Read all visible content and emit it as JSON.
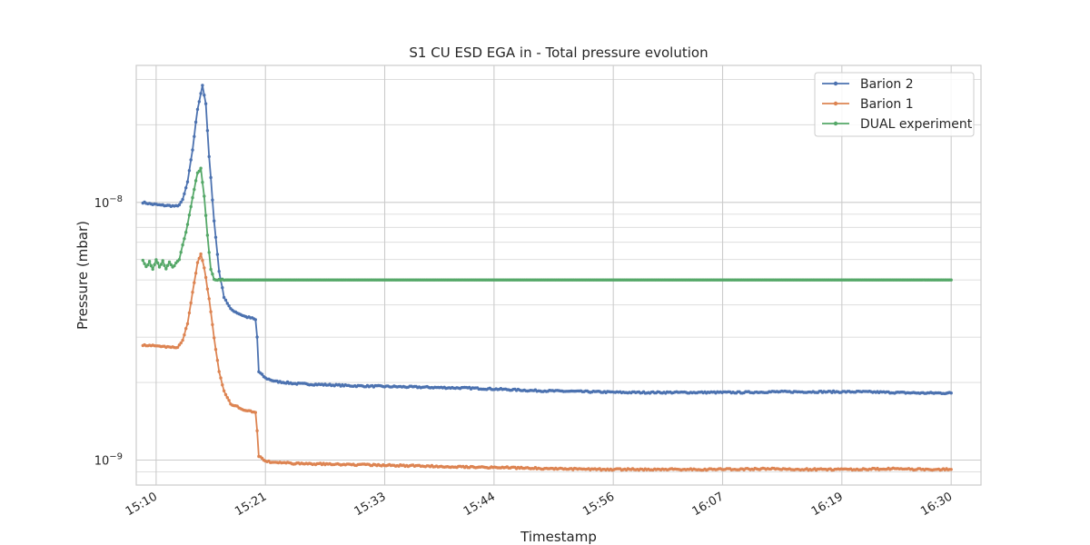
{
  "chart_data": {
    "type": "line",
    "title": "S1 CU ESD EGA in - Total pressure evolution",
    "xlabel": "Timestamp",
    "ylabel": "Pressure (mbar)",
    "x_scale": "time",
    "y_scale": "log",
    "xlim": [
      "15:08",
      "16:33"
    ],
    "ylim": [
      8e-10,
      3.4e-08
    ],
    "x_ticks": [
      "15:10",
      "15:21",
      "15:33",
      "15:44",
      "15:56",
      "16:07",
      "16:19",
      "16:30"
    ],
    "y_ticks": [
      {
        "value": 1e-09,
        "label": "10",
        "exp": "−9"
      },
      {
        "value": 1e-08,
        "label": "10",
        "exp": "−8"
      }
    ],
    "grid": true,
    "legend_position": "top-right",
    "series": [
      {
        "name": "Barion 2",
        "color": "#4c72b0",
        "points": [
          [
            "15:08:40",
            1e-08
          ],
          [
            "15:09:30",
            9.85e-09
          ],
          [
            "15:10:30",
            9.75e-09
          ],
          [
            "15:11:30",
            9.7e-09
          ],
          [
            "15:12:10",
            9.65e-09
          ],
          [
            "15:12:40",
            1.02e-08
          ],
          [
            "15:13:10",
            1.2e-08
          ],
          [
            "15:13:40",
            1.6e-08
          ],
          [
            "15:14:10",
            2.3e-08
          ],
          [
            "15:14:40",
            2.85e-08
          ],
          [
            "15:15:00",
            2.4e-08
          ],
          [
            "15:15:20",
            1.5e-08
          ],
          [
            "15:15:50",
            8.5e-09
          ],
          [
            "15:16:20",
            5.4e-09
          ],
          [
            "15:16:50",
            4.3e-09
          ],
          [
            "15:17:30",
            3.85e-09
          ],
          [
            "15:18:20",
            3.7e-09
          ],
          [
            "15:19:00",
            3.6e-09
          ],
          [
            "15:19:40",
            3.55e-09
          ],
          [
            "15:20:00",
            3.5e-09
          ],
          [
            "15:20:10",
            3e-09
          ],
          [
            "15:20:20",
            2.2e-09
          ],
          [
            "15:21:00",
            2.08e-09
          ],
          [
            "15:22:00",
            2.02e-09
          ],
          [
            "15:24:00",
            1.98e-09
          ],
          [
            "15:27:00",
            1.96e-09
          ],
          [
            "15:30:00",
            1.94e-09
          ],
          [
            "15:33:00",
            1.93e-09
          ],
          [
            "15:36:00",
            1.92e-09
          ],
          [
            "15:39:00",
            1.91e-09
          ],
          [
            "15:42:00",
            1.9e-09
          ],
          [
            "15:45:00",
            1.88e-09
          ],
          [
            "15:48:00",
            1.86e-09
          ],
          [
            "15:51:00",
            1.85e-09
          ],
          [
            "15:54:00",
            1.84e-09
          ],
          [
            "15:57:00",
            1.83e-09
          ],
          [
            "16:00:00",
            1.83e-09
          ],
          [
            "16:03:00",
            1.83e-09
          ],
          [
            "16:06:00",
            1.83e-09
          ],
          [
            "16:09:00",
            1.83e-09
          ],
          [
            "16:12:00",
            1.84e-09
          ],
          [
            "16:15:00",
            1.84e-09
          ],
          [
            "16:18:00",
            1.84e-09
          ],
          [
            "16:21:00",
            1.84e-09
          ],
          [
            "16:24:00",
            1.83e-09
          ],
          [
            "16:27:00",
            1.82e-09
          ],
          [
            "16:30:00",
            1.82e-09
          ]
        ]
      },
      {
        "name": "Barion 1",
        "color": "#dd8452",
        "points": [
          [
            "15:08:40",
            2.8e-09
          ],
          [
            "15:09:30",
            2.78e-09
          ],
          [
            "15:10:30",
            2.76e-09
          ],
          [
            "15:11:30",
            2.75e-09
          ],
          [
            "15:12:10",
            2.73e-09
          ],
          [
            "15:12:40",
            2.9e-09
          ],
          [
            "15:13:10",
            3.4e-09
          ],
          [
            "15:13:40",
            4.5e-09
          ],
          [
            "15:14:10",
            5.8e-09
          ],
          [
            "15:14:30",
            6.3e-09
          ],
          [
            "15:14:50",
            5.6e-09
          ],
          [
            "15:15:20",
            4.2e-09
          ],
          [
            "15:15:50",
            3e-09
          ],
          [
            "15:16:20",
            2.2e-09
          ],
          [
            "15:16:50",
            1.85e-09
          ],
          [
            "15:17:30",
            1.65e-09
          ],
          [
            "15:18:20",
            1.6e-09
          ],
          [
            "15:19:00",
            1.56e-09
          ],
          [
            "15:19:40",
            1.54e-09
          ],
          [
            "15:20:00",
            1.52e-09
          ],
          [
            "15:20:10",
            1.3e-09
          ],
          [
            "15:20:20",
            1.04e-09
          ],
          [
            "15:21:00",
            9.9e-10
          ],
          [
            "15:22:00",
            9.8e-10
          ],
          [
            "15:24:00",
            9.7e-10
          ],
          [
            "15:27:00",
            9.65e-10
          ],
          [
            "15:30:00",
            9.6e-10
          ],
          [
            "15:33:00",
            9.55e-10
          ],
          [
            "15:36:00",
            9.5e-10
          ],
          [
            "15:39:00",
            9.45e-10
          ],
          [
            "15:42:00",
            9.4e-10
          ],
          [
            "15:45:00",
            9.35e-10
          ],
          [
            "15:48:00",
            9.3e-10
          ],
          [
            "15:51:00",
            9.25e-10
          ],
          [
            "15:54:00",
            9.2e-10
          ],
          [
            "15:57:00",
            9.2e-10
          ],
          [
            "16:00:00",
            9.2e-10
          ],
          [
            "16:03:00",
            9.2e-10
          ],
          [
            "16:06:00",
            9.2e-10
          ],
          [
            "16:09:00",
            9.22e-10
          ],
          [
            "16:12:00",
            9.25e-10
          ],
          [
            "16:15:00",
            9.2e-10
          ],
          [
            "16:18:00",
            9.2e-10
          ],
          [
            "16:21:00",
            9.22e-10
          ],
          [
            "16:24:00",
            9.25e-10
          ],
          [
            "16:27:00",
            9.2e-10
          ],
          [
            "16:30:00",
            9.2e-10
          ]
        ]
      },
      {
        "name": "DUAL experiment",
        "color": "#55a868",
        "points": [
          [
            "15:08:40",
            6e-09
          ],
          [
            "15:09:00",
            5.6e-09
          ],
          [
            "15:09:20",
            5.9e-09
          ],
          [
            "15:09:40",
            5.5e-09
          ],
          [
            "15:10:00",
            6e-09
          ],
          [
            "15:10:20",
            5.6e-09
          ],
          [
            "15:10:40",
            5.95e-09
          ],
          [
            "15:11:00",
            5.5e-09
          ],
          [
            "15:11:20",
            5.9e-09
          ],
          [
            "15:11:40",
            5.6e-09
          ],
          [
            "15:12:00",
            5.8e-09
          ],
          [
            "15:12:20",
            6e-09
          ],
          [
            "15:12:40",
            6.8e-09
          ],
          [
            "15:13:10",
            8.2e-09
          ],
          [
            "15:13:40",
            1.05e-08
          ],
          [
            "15:14:10",
            1.3e-08
          ],
          [
            "15:14:30",
            1.35e-08
          ],
          [
            "15:14:50",
            1.05e-08
          ],
          [
            "15:15:10",
            7.5e-09
          ],
          [
            "15:15:30",
            5.5e-09
          ],
          [
            "15:15:50",
            5e-09
          ],
          [
            "15:17:00",
            5e-09
          ],
          [
            "15:20:00",
            5e-09
          ],
          [
            "15:30:00",
            5e-09
          ],
          [
            "15:45:00",
            5e-09
          ],
          [
            "16:00:00",
            5e-09
          ],
          [
            "16:15:00",
            5e-09
          ],
          [
            "16:30:00",
            5e-09
          ]
        ]
      }
    ]
  }
}
